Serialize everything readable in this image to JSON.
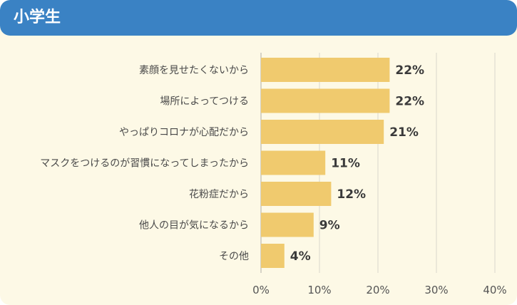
{
  "header": {
    "title": "小学生"
  },
  "colors": {
    "header": "#3a82c4",
    "background": "#fdf9e6",
    "bar": "#f0ca6e",
    "grid": "#d9d6cc"
  },
  "chart_data": {
    "type": "bar",
    "orientation": "horizontal",
    "categories": [
      "素顔を見せたくないから",
      "場所によってつける",
      "やっぱりコロナが心配だから",
      "マスクをつけるのが習慣になってしまったから",
      "花粉症だから",
      "他人の目が気になるから",
      "その他"
    ],
    "values": [
      22,
      22,
      21,
      11,
      12,
      9,
      4
    ],
    "value_labels": [
      "22%",
      "22%",
      "21%",
      "11%",
      "12%",
      "9%",
      "4%"
    ],
    "xlim": [
      0,
      40
    ],
    "xticks": [
      0,
      10,
      20,
      30,
      40
    ],
    "xtick_labels": [
      "0%",
      "10%",
      "20%",
      "30%",
      "40%"
    ],
    "grid": true
  }
}
